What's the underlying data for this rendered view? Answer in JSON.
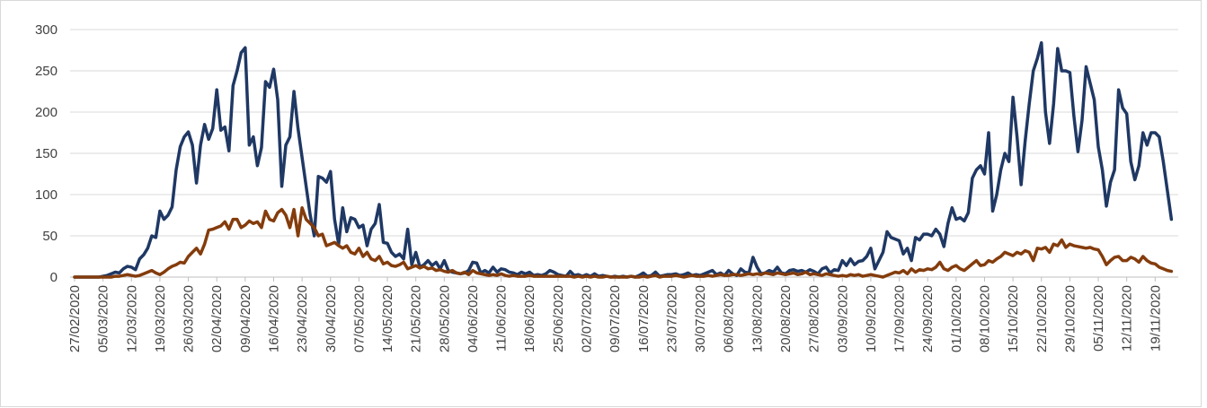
{
  "chart_data": {
    "type": "line",
    "categories": [
      "27/02/2020",
      null,
      null,
      null,
      null,
      null,
      null,
      "05/03/2020",
      null,
      null,
      null,
      null,
      null,
      null,
      "12/03/2020",
      null,
      null,
      null,
      null,
      null,
      null,
      "19/03/2020",
      null,
      null,
      null,
      null,
      null,
      null,
      "26/03/2020",
      null,
      null,
      null,
      null,
      null,
      null,
      "02/04/2020",
      null,
      null,
      null,
      null,
      null,
      null,
      "09/04/2020",
      null,
      null,
      null,
      null,
      null,
      null,
      "16/04/2020",
      null,
      null,
      null,
      null,
      null,
      null,
      "23/04/2020",
      null,
      null,
      null,
      null,
      null,
      null,
      "30/04/2020",
      null,
      null,
      null,
      null,
      null,
      null,
      "07/05/2020",
      null,
      null,
      null,
      null,
      null,
      null,
      "14/05/2020",
      null,
      null,
      null,
      null,
      null,
      null,
      "21/05/2020",
      null,
      null,
      null,
      null,
      null,
      null,
      "28/05/2020",
      null,
      null,
      null,
      null,
      null,
      null,
      "04/06/2020",
      null,
      null,
      null,
      null,
      null,
      null,
      "11/06/2020",
      null,
      null,
      null,
      null,
      null,
      null,
      "18/06/2020",
      null,
      null,
      null,
      null,
      null,
      null,
      "25/06/2020",
      null,
      null,
      null,
      null,
      null,
      null,
      "02/07/2020",
      null,
      null,
      null,
      null,
      null,
      null,
      "09/07/2020",
      null,
      null,
      null,
      null,
      null,
      null,
      "16/07/2020",
      null,
      null,
      null,
      null,
      null,
      null,
      "23/07/2020",
      null,
      null,
      null,
      null,
      null,
      null,
      "30/07/2020",
      null,
      null,
      null,
      null,
      null,
      null,
      "06/08/2020",
      null,
      null,
      null,
      null,
      null,
      null,
      "13/08/2020",
      null,
      null,
      null,
      null,
      null,
      null,
      "20/08/2020",
      null,
      null,
      null,
      null,
      null,
      null,
      "27/08/2020",
      null,
      null,
      null,
      null,
      null,
      null,
      "03/09/2020",
      null,
      null,
      null,
      null,
      null,
      null,
      "10/09/2020",
      null,
      null,
      null,
      null,
      null,
      null,
      "17/09/2020",
      null,
      null,
      null,
      null,
      null,
      null,
      "24/09/2020",
      null,
      null,
      null,
      null,
      null,
      null,
      "01/10/2020",
      null,
      null,
      null,
      null,
      null,
      null,
      "08/10/2020",
      null,
      null,
      null,
      null,
      null,
      null,
      "15/10/2020",
      null,
      null,
      null,
      null,
      null,
      null,
      "22/10/2020",
      null,
      null,
      null,
      null,
      null,
      null,
      "29/10/2020",
      null,
      null,
      null,
      null,
      null,
      null,
      "05/11/2020",
      null,
      null,
      null,
      null,
      null,
      null,
      "12/11/2020",
      null,
      null,
      null,
      null,
      null,
      null,
      "19/11/2020",
      null,
      null,
      null,
      null
    ],
    "series": [
      {
        "color": "#1f3864",
        "values": [
          0,
          0,
          0,
          0,
          0,
          0,
          0,
          1,
          2,
          4,
          6,
          5,
          10,
          13,
          12,
          9,
          22,
          27,
          35,
          50,
          48,
          80,
          70,
          75,
          85,
          130,
          158,
          170,
          176,
          160,
          114,
          160,
          185,
          167,
          180,
          227,
          178,
          182,
          153,
          232,
          250,
          272,
          278,
          160,
          170,
          135,
          157,
          237,
          230,
          252,
          215,
          110,
          160,
          170,
          225,
          180,
          145,
          110,
          75,
          50,
          122,
          120,
          115,
          128,
          70,
          40,
          84,
          55,
          72,
          70,
          60,
          63,
          38,
          58,
          65,
          88,
          42,
          41,
          30,
          25,
          28,
          22,
          58,
          15,
          30,
          12,
          15,
          20,
          14,
          18,
          10,
          20,
          8,
          6,
          5,
          4,
          5,
          8,
          18,
          17,
          5,
          8,
          5,
          12,
          6,
          10,
          9,
          6,
          5,
          3,
          6,
          4,
          6,
          2,
          3,
          2,
          4,
          8,
          6,
          3,
          2,
          1,
          7,
          2,
          3,
          1,
          3,
          1,
          4,
          1,
          2,
          1,
          0,
          1,
          0,
          1,
          0,
          1,
          0,
          2,
          5,
          1,
          2,
          6,
          1,
          2,
          3,
          3,
          4,
          2,
          3,
          5,
          2,
          3,
          2,
          4,
          6,
          8,
          3,
          5,
          2,
          8,
          4,
          2,
          10,
          6,
          5,
          24,
          12,
          4,
          5,
          8,
          6,
          12,
          5,
          4,
          8,
          9,
          7,
          8,
          6,
          9,
          7,
          4,
          10,
          12,
          5,
          9,
          8,
          20,
          14,
          22,
          15,
          19,
          20,
          25,
          35,
          10,
          20,
          30,
          55,
          48,
          46,
          44,
          28,
          35,
          20,
          48,
          45,
          52,
          52,
          50,
          58,
          52,
          37,
          65,
          84,
          70,
          72,
          68,
          78,
          120,
          130,
          135,
          125,
          175,
          80,
          100,
          130,
          150,
          140,
          218,
          170,
          112,
          165,
          210,
          250,
          265,
          284,
          200,
          162,
          210,
          277,
          250,
          250,
          248,
          195,
          152,
          190,
          255,
          235,
          215,
          158,
          130,
          86,
          115,
          130,
          227,
          205,
          198,
          140,
          118,
          135,
          175,
          160,
          175,
          175,
          170,
          140,
          105,
          70
        ]
      },
      {
        "color": "#843c0c",
        "values": [
          0,
          0,
          0,
          0,
          0,
          0,
          0,
          0,
          0,
          0,
          1,
          1,
          2,
          3,
          2,
          1,
          2,
          4,
          6,
          8,
          5,
          3,
          6,
          10,
          13,
          15,
          18,
          17,
          25,
          30,
          35,
          28,
          40,
          57,
          58,
          60,
          62,
          67,
          58,
          70,
          70,
          60,
          63,
          68,
          65,
          67,
          60,
          80,
          70,
          68,
          78,
          82,
          75,
          60,
          82,
          50,
          84,
          70,
          65,
          60,
          50,
          52,
          38,
          40,
          42,
          38,
          35,
          38,
          30,
          28,
          35,
          25,
          30,
          22,
          20,
          25,
          16,
          18,
          14,
          13,
          15,
          18,
          10,
          12,
          14,
          11,
          13,
          10,
          11,
          8,
          9,
          7,
          6,
          8,
          5,
          4,
          6,
          3,
          8,
          5,
          4,
          3,
          2,
          3,
          2,
          4,
          2,
          1,
          2,
          1,
          1,
          1,
          2,
          1,
          1,
          1,
          1,
          1,
          1,
          1,
          1,
          1,
          1,
          0,
          1,
          0,
          1,
          0,
          1,
          0,
          0,
          1,
          0,
          0,
          0,
          0,
          0,
          1,
          0,
          0,
          1,
          0,
          1,
          2,
          0,
          1,
          1,
          1,
          2,
          1,
          0,
          1,
          2,
          1,
          1,
          1,
          2,
          1,
          2,
          3,
          2,
          2,
          3,
          3,
          2,
          3,
          4,
          3,
          4,
          3,
          5,
          4,
          3,
          5,
          4,
          3,
          4,
          5,
          3,
          4,
          6,
          3,
          4,
          3,
          2,
          4,
          3,
          2,
          1,
          2,
          1,
          3,
          2,
          3,
          1,
          2,
          3,
          2,
          1,
          0,
          2,
          4,
          6,
          5,
          8,
          4,
          10,
          6,
          9,
          8,
          10,
          9,
          12,
          18,
          10,
          8,
          12,
          14,
          10,
          8,
          12,
          16,
          20,
          14,
          15,
          20,
          18,
          22,
          25,
          30,
          28,
          26,
          30,
          28,
          32,
          30,
          20,
          35,
          34,
          36,
          30,
          40,
          38,
          45,
          36,
          40,
          38,
          37,
          36,
          35,
          36,
          34,
          33,
          25,
          15,
          20,
          24,
          25,
          20,
          20,
          24,
          22,
          18,
          25,
          20,
          17,
          16,
          12,
          10,
          8,
          7
        ]
      }
    ],
    "ylim": [
      0,
      300
    ],
    "yticks": [
      0,
      50,
      100,
      150,
      200,
      250,
      300
    ],
    "grid": true
  }
}
